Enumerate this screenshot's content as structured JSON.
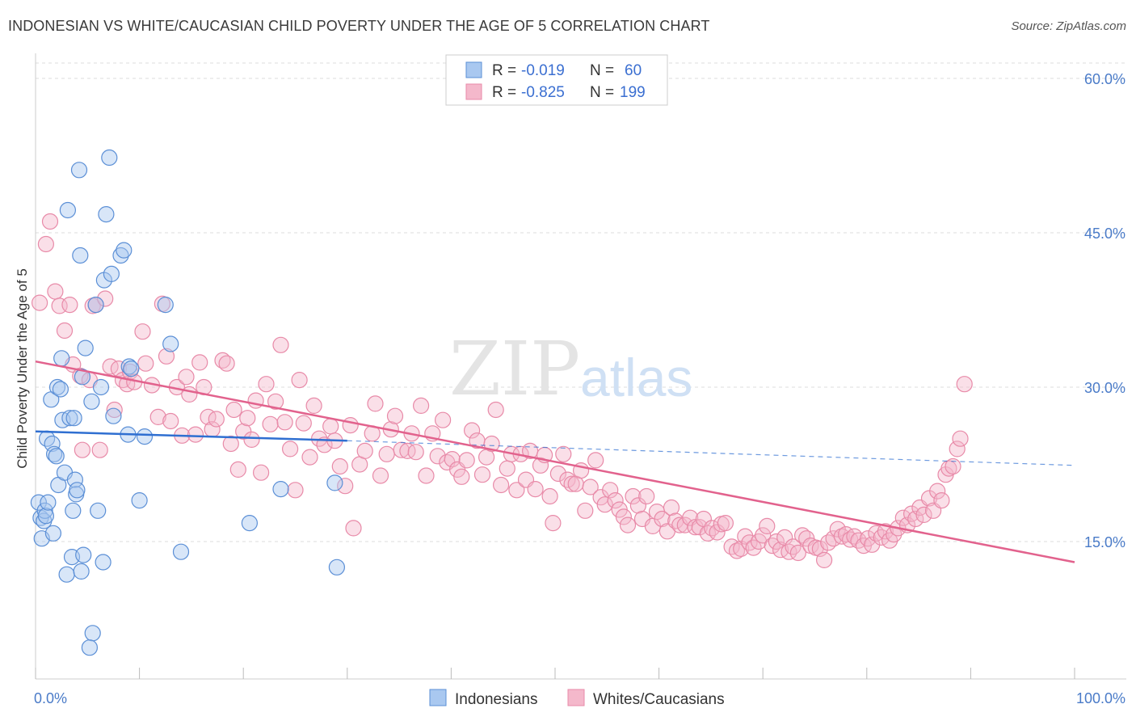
{
  "title": "INDONESIAN VS WHITE/CAUCASIAN CHILD POVERTY UNDER THE AGE OF 5 CORRELATION CHART",
  "source": "Source: ZipAtlas.com",
  "watermark": {
    "zip": "ZIP",
    "atlas": "atlas"
  },
  "colors": {
    "blue_fill": "#a9c8f0",
    "blue_stroke": "#5b8fd6",
    "blue_line": "#2f6fd1",
    "pink_fill": "#f4b8cb",
    "pink_stroke": "#e88aa8",
    "pink_line": "#e2628d",
    "grid": "#dddddd",
    "tick_label": "#4a7bc8"
  },
  "legend": {
    "rows": [
      {
        "r_label": "R = ",
        "r_value": "-0.019",
        "n_label": "N = ",
        "n_value": "60"
      },
      {
        "r_label": "R = ",
        "r_value": "-0.825",
        "n_label": "N = ",
        "n_value": "199"
      }
    ]
  },
  "bottom_legend": [
    "Indonesians",
    "Whites/Caucasians"
  ],
  "chart_data": {
    "type": "scatter",
    "ylabel": "Child Poverty Under the Age of 5",
    "xlim": [
      0,
      100
    ],
    "ylim": [
      0,
      62
    ],
    "x_tick_labels": [
      "0.0%",
      "100.0%"
    ],
    "y_ticks": [
      15,
      30,
      45,
      60
    ],
    "y_tick_labels": [
      "15.0%",
      "30.0%",
      "45.0%",
      "60.0%"
    ],
    "grid": true,
    "legend_placement": "top-center",
    "series": [
      {
        "name": "Indonesians",
        "r": -0.019,
        "n": 60,
        "trend": {
          "x": [
            0,
            30
          ],
          "y": [
            25.7,
            24.8
          ],
          "dashed_to": [
            100,
            22.4
          ]
        },
        "points": [
          [
            0.3,
            18.8
          ],
          [
            0.5,
            17.3
          ],
          [
            0.6,
            15.3
          ],
          [
            0.8,
            17.0
          ],
          [
            0.9,
            18.0
          ],
          [
            1.0,
            17.5
          ],
          [
            1.1,
            25.0
          ],
          [
            1.2,
            18.8
          ],
          [
            1.5,
            28.8
          ],
          [
            1.6,
            24.5
          ],
          [
            1.7,
            15.8
          ],
          [
            1.8,
            23.5
          ],
          [
            2.0,
            23.3
          ],
          [
            2.1,
            30.0
          ],
          [
            2.2,
            20.5
          ],
          [
            2.4,
            29.8
          ],
          [
            2.5,
            32.8
          ],
          [
            2.6,
            26.8
          ],
          [
            2.8,
            21.7
          ],
          [
            3.0,
            11.8
          ],
          [
            3.1,
            47.2
          ],
          [
            3.3,
            27.0
          ],
          [
            3.5,
            13.5
          ],
          [
            3.6,
            18.0
          ],
          [
            3.7,
            27.0
          ],
          [
            3.8,
            21.0
          ],
          [
            3.9,
            19.6
          ],
          [
            4.0,
            20.0
          ],
          [
            4.2,
            51.1
          ],
          [
            4.3,
            42.8
          ],
          [
            4.4,
            12.1
          ],
          [
            4.5,
            31.0
          ],
          [
            4.6,
            13.7
          ],
          [
            4.8,
            33.8
          ],
          [
            5.4,
            28.6
          ],
          [
            5.5,
            6.1
          ],
          [
            5.2,
            4.7
          ],
          [
            5.8,
            38.0
          ],
          [
            6.0,
            18.0
          ],
          [
            6.3,
            30.0
          ],
          [
            6.5,
            13.0
          ],
          [
            6.6,
            40.4
          ],
          [
            6.8,
            46.8
          ],
          [
            7.1,
            52.3
          ],
          [
            7.3,
            41.0
          ],
          [
            7.5,
            27.2
          ],
          [
            8.2,
            42.8
          ],
          [
            8.5,
            43.3
          ],
          [
            8.9,
            25.4
          ],
          [
            9.0,
            32.0
          ],
          [
            9.2,
            31.8
          ],
          [
            10.0,
            19.0
          ],
          [
            10.5,
            25.2
          ],
          [
            12.5,
            38.0
          ],
          [
            13.0,
            34.2
          ],
          [
            14.0,
            14.0
          ],
          [
            20.6,
            16.8
          ],
          [
            23.6,
            20.1
          ],
          [
            28.8,
            20.7
          ],
          [
            29.0,
            12.5
          ]
        ]
      },
      {
        "name": "Whites/Caucasians",
        "r": -0.825,
        "n": 199,
        "trend": {
          "x": [
            0,
            100
          ],
          "y": [
            32.5,
            13.0
          ]
        },
        "points": [
          [
            0.4,
            38.2
          ],
          [
            1.0,
            43.9
          ],
          [
            1.4,
            46.1
          ],
          [
            1.9,
            39.3
          ],
          [
            2.3,
            37.9
          ],
          [
            2.8,
            35.5
          ],
          [
            3.3,
            38.0
          ],
          [
            3.6,
            32.2
          ],
          [
            4.3,
            31.1
          ],
          [
            4.5,
            23.9
          ],
          [
            5.2,
            30.7
          ],
          [
            5.5,
            37.9
          ],
          [
            5.8,
            38.0
          ],
          [
            6.2,
            23.9
          ],
          [
            6.7,
            38.6
          ],
          [
            7.2,
            32.0
          ],
          [
            7.6,
            27.8
          ],
          [
            8.0,
            31.8
          ],
          [
            8.4,
            30.7
          ],
          [
            8.8,
            30.3
          ],
          [
            9.1,
            31.5
          ],
          [
            9.5,
            30.5
          ],
          [
            10.3,
            35.4
          ],
          [
            10.6,
            32.3
          ],
          [
            11.2,
            30.2
          ],
          [
            11.8,
            27.1
          ],
          [
            12.2,
            38.1
          ],
          [
            12.6,
            33.0
          ],
          [
            13.0,
            26.7
          ],
          [
            13.6,
            30.0
          ],
          [
            14.1,
            25.3
          ],
          [
            14.5,
            31.0
          ],
          [
            14.8,
            29.3
          ],
          [
            15.4,
            25.4
          ],
          [
            15.8,
            32.4
          ],
          [
            16.2,
            30.0
          ],
          [
            16.6,
            27.1
          ],
          [
            17.0,
            25.9
          ],
          [
            17.4,
            26.9
          ],
          [
            18.0,
            32.6
          ],
          [
            18.4,
            32.3
          ],
          [
            18.8,
            24.5
          ],
          [
            19.1,
            27.8
          ],
          [
            19.5,
            22.0
          ],
          [
            20.0,
            25.7
          ],
          [
            20.4,
            27.0
          ],
          [
            20.8,
            24.9
          ],
          [
            21.2,
            28.7
          ],
          [
            21.7,
            21.7
          ],
          [
            22.2,
            30.3
          ],
          [
            22.6,
            26.4
          ],
          [
            23.1,
            28.6
          ],
          [
            23.6,
            34.1
          ],
          [
            24.0,
            26.6
          ],
          [
            24.5,
            24.0
          ],
          [
            25.0,
            20.0
          ],
          [
            25.4,
            30.7
          ],
          [
            25.8,
            26.5
          ],
          [
            26.4,
            23.2
          ],
          [
            26.8,
            28.2
          ],
          [
            27.3,
            25.0
          ],
          [
            27.8,
            24.4
          ],
          [
            28.4,
            26.2
          ],
          [
            28.8,
            24.8
          ],
          [
            29.3,
            22.3
          ],
          [
            29.8,
            20.4
          ],
          [
            30.3,
            26.3
          ],
          [
            30.6,
            16.3
          ],
          [
            31.2,
            22.5
          ],
          [
            31.7,
            23.8
          ],
          [
            32.4,
            25.5
          ],
          [
            32.7,
            28.4
          ],
          [
            33.2,
            21.4
          ],
          [
            33.8,
            23.5
          ],
          [
            34.2,
            25.9
          ],
          [
            34.6,
            27.2
          ],
          [
            35.2,
            23.9
          ],
          [
            35.8,
            23.8
          ],
          [
            36.2,
            25.5
          ],
          [
            36.6,
            23.7
          ],
          [
            37.1,
            28.2
          ],
          [
            37.6,
            21.4
          ],
          [
            38.2,
            25.5
          ],
          [
            38.7,
            23.3
          ],
          [
            39.2,
            26.8
          ],
          [
            39.6,
            22.7
          ],
          [
            40.1,
            23.0
          ],
          [
            40.6,
            22.0
          ],
          [
            41.0,
            21.3
          ],
          [
            41.5,
            22.9
          ],
          [
            42.0,
            25.8
          ],
          [
            42.5,
            24.8
          ],
          [
            43.0,
            21.5
          ],
          [
            43.4,
            23.2
          ],
          [
            43.9,
            24.5
          ],
          [
            44.3,
            27.8
          ],
          [
            44.8,
            20.5
          ],
          [
            45.4,
            22.1
          ],
          [
            45.8,
            23.5
          ],
          [
            46.3,
            20.0
          ],
          [
            46.7,
            23.5
          ],
          [
            47.2,
            21.0
          ],
          [
            47.6,
            23.8
          ],
          [
            48.1,
            20.1
          ],
          [
            48.6,
            22.4
          ],
          [
            49.0,
            23.4
          ],
          [
            49.5,
            19.4
          ],
          [
            49.8,
            16.8
          ],
          [
            50.3,
            21.6
          ],
          [
            50.8,
            23.5
          ],
          [
            51.2,
            21.0
          ],
          [
            51.6,
            20.6
          ],
          [
            52.0,
            20.6
          ],
          [
            52.5,
            21.9
          ],
          [
            52.9,
            18.0
          ],
          [
            53.4,
            20.3
          ],
          [
            53.9,
            22.9
          ],
          [
            54.4,
            19.3
          ],
          [
            54.8,
            18.6
          ],
          [
            55.3,
            20.0
          ],
          [
            55.8,
            19.0
          ],
          [
            56.2,
            18.1
          ],
          [
            56.6,
            17.4
          ],
          [
            57.0,
            16.6
          ],
          [
            57.5,
            19.4
          ],
          [
            58.0,
            18.5
          ],
          [
            58.4,
            17.2
          ],
          [
            58.8,
            19.4
          ],
          [
            59.4,
            16.5
          ],
          [
            59.8,
            17.9
          ],
          [
            60.3,
            17.2
          ],
          [
            60.8,
            16.0
          ],
          [
            61.2,
            18.3
          ],
          [
            61.6,
            17.0
          ],
          [
            62.0,
            16.6
          ],
          [
            62.5,
            16.6
          ],
          [
            63.0,
            17.3
          ],
          [
            63.5,
            16.4
          ],
          [
            63.9,
            16.4
          ],
          [
            64.3,
            17.2
          ],
          [
            64.7,
            15.8
          ],
          [
            65.1,
            16.3
          ],
          [
            65.6,
            15.9
          ],
          [
            66.0,
            16.7
          ],
          [
            66.4,
            16.8
          ],
          [
            67.0,
            14.5
          ],
          [
            67.5,
            14.1
          ],
          [
            67.9,
            14.3
          ],
          [
            68.3,
            15.5
          ],
          [
            68.7,
            14.9
          ],
          [
            69.1,
            14.4
          ],
          [
            69.6,
            15.0
          ],
          [
            70.0,
            15.6
          ],
          [
            70.4,
            16.5
          ],
          [
            70.9,
            14.6
          ],
          [
            71.3,
            15.0
          ],
          [
            71.7,
            14.2
          ],
          [
            72.1,
            15.4
          ],
          [
            72.5,
            14.0
          ],
          [
            72.9,
            14.5
          ],
          [
            73.4,
            13.9
          ],
          [
            73.8,
            15.6
          ],
          [
            74.2,
            15.3
          ],
          [
            74.6,
            14.6
          ],
          [
            75.1,
            14.4
          ],
          [
            75.5,
            14.3
          ],
          [
            75.9,
            13.2
          ],
          [
            76.3,
            14.9
          ],
          [
            76.8,
            15.3
          ],
          [
            77.2,
            16.2
          ],
          [
            77.6,
            15.5
          ],
          [
            78.0,
            15.7
          ],
          [
            78.4,
            15.2
          ],
          [
            78.8,
            15.5
          ],
          [
            79.2,
            15.1
          ],
          [
            79.7,
            14.6
          ],
          [
            80.1,
            15.3
          ],
          [
            80.5,
            14.7
          ],
          [
            80.9,
            15.8
          ],
          [
            81.4,
            15.4
          ],
          [
            81.8,
            16.0
          ],
          [
            82.2,
            15.1
          ],
          [
            82.6,
            15.7
          ],
          [
            83.0,
            16.3
          ],
          [
            83.5,
            17.3
          ],
          [
            83.9,
            16.6
          ],
          [
            84.3,
            17.7
          ],
          [
            84.7,
            17.2
          ],
          [
            85.1,
            18.3
          ],
          [
            85.5,
            17.6
          ],
          [
            86.0,
            19.2
          ],
          [
            86.4,
            18.0
          ],
          [
            86.8,
            19.9
          ],
          [
            87.2,
            19.0
          ],
          [
            87.6,
            21.5
          ],
          [
            87.9,
            22.1
          ],
          [
            88.3,
            22.3
          ],
          [
            88.7,
            24.0
          ],
          [
            89.0,
            25.0
          ],
          [
            89.4,
            30.3
          ]
        ]
      }
    ]
  }
}
